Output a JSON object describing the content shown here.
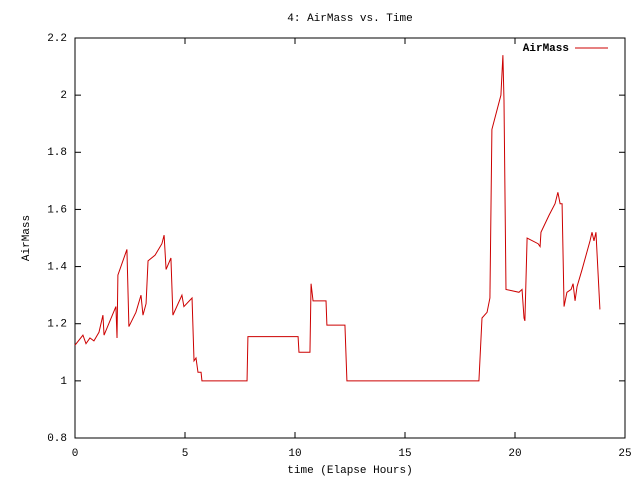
{
  "chart_data": {
    "type": "line",
    "title": "4: AirMass vs. Time",
    "x_label": "time (Elapse Hours)",
    "y_label": "AirMass",
    "x": [
      0,
      0.36,
      0.5,
      0.68,
      0.86,
      1.09,
      1.27,
      1.32,
      1.59,
      1.86,
      1.91,
      1.95,
      2.36,
      2.45,
      2.77,
      3.0,
      3.09,
      3.23,
      3.32,
      3.64,
      3.95,
      4.05,
      4.14,
      4.36,
      4.45,
      4.86,
      4.95,
      5.32,
      5.41,
      5.5,
      5.59,
      5.73,
      5.77,
      7.82,
      7.86,
      10.14,
      10.18,
      10.68,
      10.73,
      10.82,
      11.41,
      11.45,
      12.27,
      12.36,
      18.36,
      18.5,
      18.73,
      18.86,
      18.95,
      19.36,
      19.45,
      19.5,
      19.59,
      20.18,
      20.32,
      20.41,
      20.45,
      20.55,
      21.05,
      21.14,
      21.18,
      21.55,
      21.82,
      21.95,
      22.05,
      22.14,
      22.23,
      22.36,
      22.55,
      22.64,
      22.73,
      22.82,
      23.05,
      23.41,
      23.5,
      23.59,
      23.68,
      23.86
    ],
    "series": [
      {
        "name": "AirMass",
        "color": "#cc0000",
        "values": [
          1.125,
          1.16,
          1.13,
          1.15,
          1.14,
          1.17,
          1.23,
          1.16,
          1.21,
          1.26,
          1.15,
          1.37,
          1.46,
          1.19,
          1.24,
          1.3,
          1.23,
          1.27,
          1.42,
          1.44,
          1.48,
          1.51,
          1.39,
          1.43,
          1.23,
          1.3,
          1.26,
          1.29,
          1.07,
          1.08,
          1.03,
          1.03,
          1.0,
          1.0,
          1.155,
          1.155,
          1.1,
          1.1,
          1.34,
          1.28,
          1.28,
          1.195,
          1.195,
          1.0,
          1.0,
          1.22,
          1.24,
          1.29,
          1.88,
          2.0,
          2.14,
          1.98,
          1.32,
          1.31,
          1.32,
          1.22,
          1.21,
          1.5,
          1.48,
          1.47,
          1.52,
          1.58,
          1.62,
          1.66,
          1.62,
          1.62,
          1.26,
          1.31,
          1.32,
          1.34,
          1.28,
          1.33,
          1.39,
          1.49,
          1.52,
          1.49,
          1.52,
          1.25
        ]
      }
    ],
    "xlim": [
      0,
      25
    ],
    "xticks": [
      0,
      5,
      10,
      15,
      20,
      25
    ],
    "ylim": [
      0.8,
      2.2
    ],
    "yticks": [
      0.8,
      1,
      1.2,
      1.4,
      1.6,
      1.8,
      2,
      2.2
    ],
    "grid": false,
    "legend": "top-right"
  }
}
